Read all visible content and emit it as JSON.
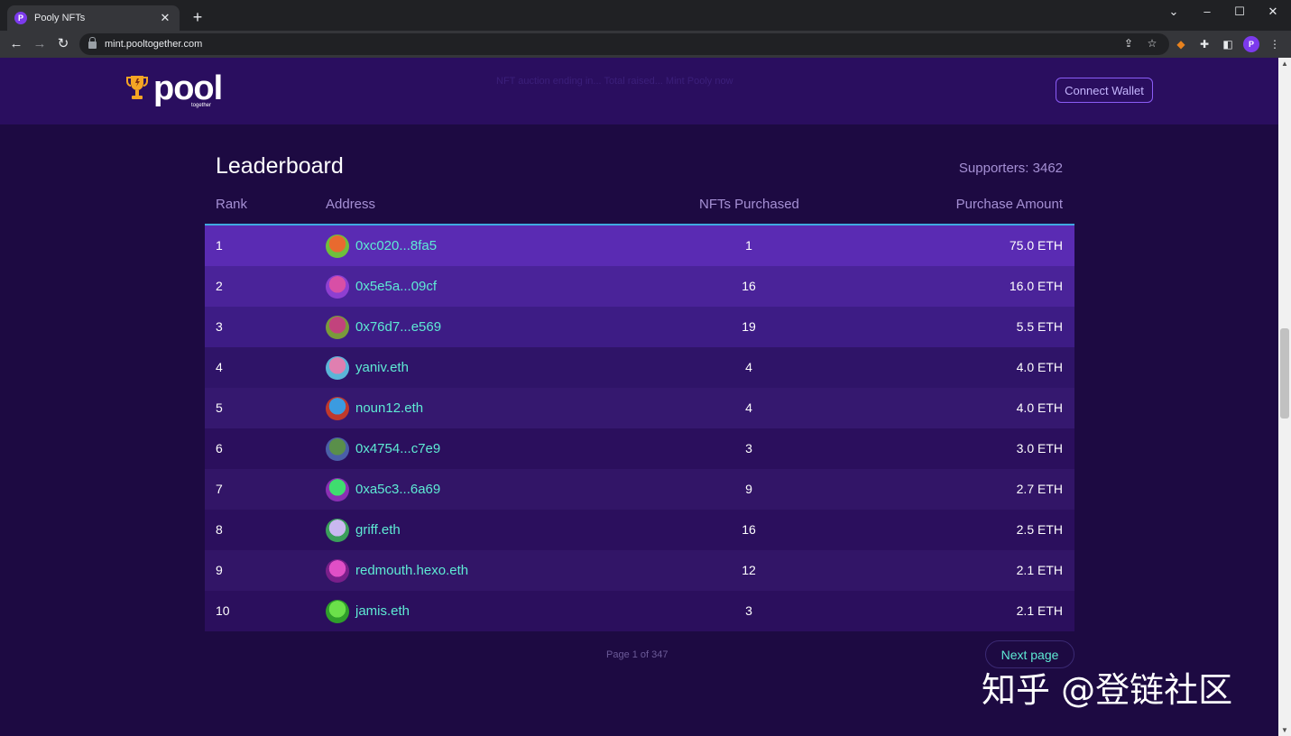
{
  "browser": {
    "tab_title": "Pooly NFTs",
    "tab_favicon": "P",
    "url": "mint.pooltogether.com",
    "profile_initial": "P"
  },
  "header": {
    "logo_text": "pool",
    "logo_sub": "together",
    "faded_text": "NFT auction ending in... Total raised... Mint Pooly now",
    "connect_label": "Connect Wallet"
  },
  "leaderboard": {
    "title": "Leaderboard",
    "supporters": "Supporters: 3462",
    "columns": {
      "rank": "Rank",
      "address": "Address",
      "nfts": "NFTs Purchased",
      "amount": "Purchase Amount"
    },
    "rows": [
      {
        "rank": "1",
        "address": "0xc020...8fa5",
        "nfts": "1",
        "amount": "75.0 ETH",
        "bg": "#5a2bb3",
        "av": [
          "#e86a2f",
          "#6fbf3b"
        ]
      },
      {
        "rank": "2",
        "address": "0x5e5a...09cf",
        "nfts": "16",
        "amount": "16.0 ETH",
        "bg": "#4a2399",
        "av": [
          "#d84fa6",
          "#8e3fd1"
        ]
      },
      {
        "rank": "3",
        "address": "0x76d7...e569",
        "nfts": "19",
        "amount": "5.5 ETH",
        "bg": "#3d1c85",
        "av": [
          "#c2437d",
          "#7a9a3a"
        ]
      },
      {
        "rank": "4",
        "address": "yaniv.eth",
        "nfts": "4",
        "amount": "4.0 ETH",
        "bg": "#2f1468",
        "av": [
          "#e07fb0",
          "#5bb5d8"
        ]
      },
      {
        "rank": "5",
        "address": "noun12.eth",
        "nfts": "4",
        "amount": "4.0 ETH",
        "bg": "#35186f",
        "av": [
          "#3b9be0",
          "#c0392b"
        ]
      },
      {
        "rank": "6",
        "address": "0x4754...c7e9",
        "nfts": "3",
        "amount": "3.0 ETH",
        "bg": "#2b0f5d",
        "av": [
          "#5a8f4a",
          "#4a5fa8"
        ]
      },
      {
        "rank": "7",
        "address": "0xa5c3...6a69",
        "nfts": "9",
        "amount": "2.7 ETH",
        "bg": "#321567",
        "av": [
          "#3fdd6f",
          "#8b2fb3"
        ]
      },
      {
        "rank": "8",
        "address": "griff.eth",
        "nfts": "16",
        "amount": "2.5 ETH",
        "bg": "#2b0f5d",
        "av": [
          "#c9b8f0",
          "#3a9f5a"
        ]
      },
      {
        "rank": "9",
        "address": "redmouth.hexo.eth",
        "nfts": "12",
        "amount": "2.1 ETH",
        "bg": "#321567",
        "av": [
          "#e04fc6",
          "#7a1f8a"
        ]
      },
      {
        "rank": "10",
        "address": "jamis.eth",
        "nfts": "3",
        "amount": "2.1 ETH",
        "bg": "#2b0f5d",
        "av": [
          "#6be04a",
          "#2f9f2a"
        ]
      }
    ]
  },
  "pagination": {
    "label": "Page 1 of 347",
    "next_label": "Next page"
  },
  "watermark": "知乎 @登链社区"
}
